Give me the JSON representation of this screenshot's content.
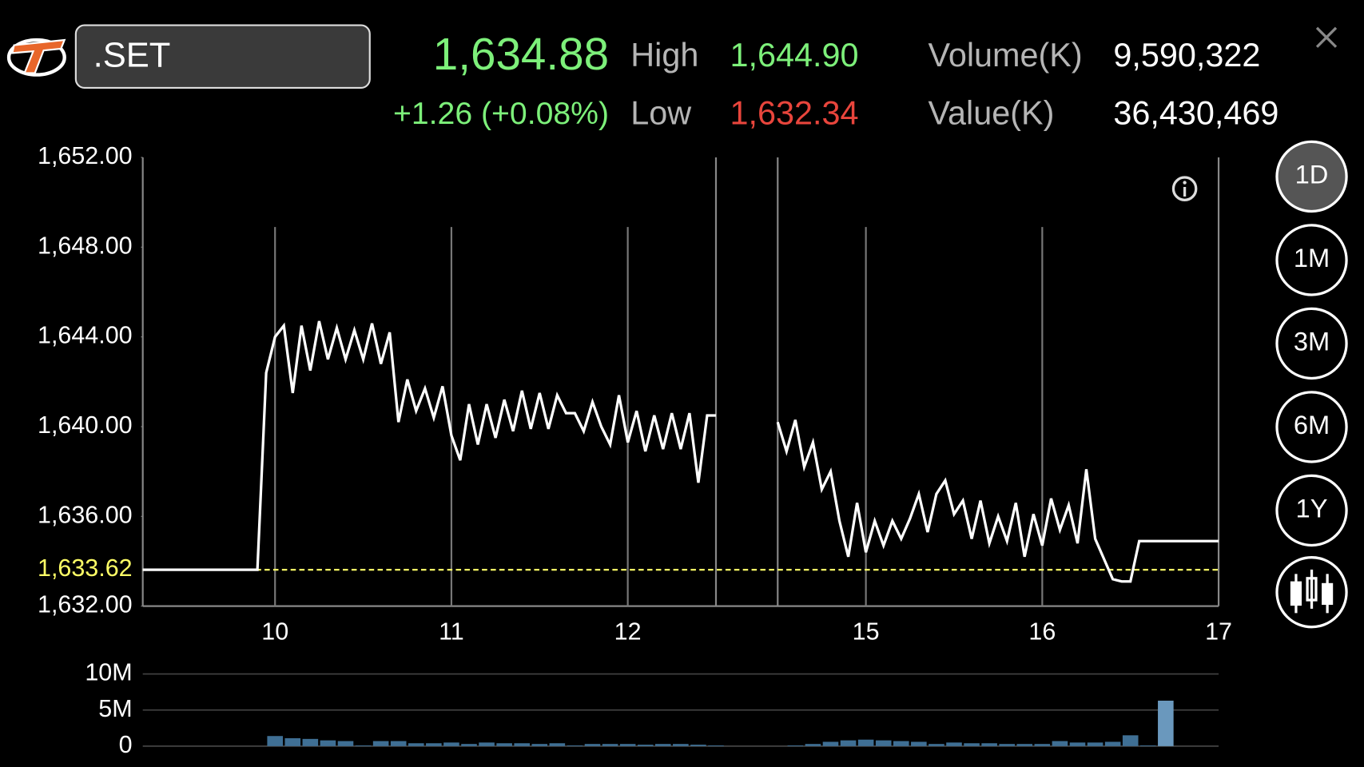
{
  "header": {
    "symbol": ".SET",
    "last": "1,634.88",
    "change": "+1.26 (+0.08%)",
    "high_label": "High",
    "high": "1,644.90",
    "low_label": "Low",
    "low": "1,632.34",
    "volume_label": "Volume(K)",
    "volume": "9,590,322",
    "value_label": "Value(K)",
    "value": "36,430,469"
  },
  "periods": {
    "items": [
      "1D",
      "1M",
      "3M",
      "6M",
      "1Y"
    ],
    "selected": "1D"
  },
  "chart_data": [
    {
      "type": "line",
      "color": "#ffffff",
      "x": [
        9.25,
        9.9,
        9.95,
        10.0,
        10.05,
        10.1,
        10.15,
        10.2,
        10.25,
        10.3,
        10.35,
        10.4,
        10.45,
        10.5,
        10.55,
        10.6,
        10.65,
        10.7,
        10.75,
        10.8,
        10.85,
        10.9,
        10.95,
        11.0,
        11.05,
        11.1,
        11.15,
        11.2,
        11.25,
        11.3,
        11.35,
        11.4,
        11.45,
        11.5,
        11.55,
        11.6,
        11.65,
        11.7,
        11.75,
        11.8,
        11.85,
        11.9,
        11.95,
        12.0,
        12.05,
        12.1,
        12.15,
        12.2,
        12.25,
        12.3,
        12.35,
        12.4,
        12.45,
        12.5,
        13.5,
        14.5,
        14.55,
        14.6,
        14.65,
        14.7,
        14.75,
        14.8,
        14.85,
        14.9,
        14.95,
        15.0,
        15.05,
        15.1,
        15.15,
        15.2,
        15.25,
        15.3,
        15.35,
        15.4,
        15.45,
        15.5,
        15.55,
        15.6,
        15.65,
        15.7,
        15.75,
        15.8,
        15.85,
        15.9,
        15.95,
        16.0,
        16.05,
        16.1,
        16.15,
        16.2,
        16.25,
        16.3,
        16.35,
        16.4,
        16.45,
        16.5,
        16.55,
        17.0
      ],
      "values": [
        1633.62,
        1633.62,
        1642.4,
        1644.0,
        1644.5,
        1641.5,
        1644.5,
        1642.5,
        1644.7,
        1643.0,
        1644.4,
        1643.0,
        1644.3,
        1643.0,
        1644.6,
        1642.8,
        1644.2,
        1640.2,
        1642.1,
        1640.7,
        1641.7,
        1640.4,
        1641.8,
        1639.6,
        1638.5,
        1641.0,
        1639.2,
        1641.0,
        1639.5,
        1641.2,
        1639.8,
        1641.6,
        1639.9,
        1641.5,
        1639.9,
        1641.4,
        1640.6,
        1640.6,
        1639.8,
        1641.1,
        1640.0,
        1639.2,
        1641.4,
        1639.3,
        1640.7,
        1638.9,
        1640.5,
        1639.0,
        1640.6,
        1639.0,
        1640.6,
        1637.5,
        1640.5,
        1640.5,
        null,
        1640.2,
        1638.9,
        1640.3,
        1638.2,
        1639.3,
        1637.2,
        1638.0,
        1635.8,
        1634.2,
        1636.6,
        1634.4,
        1635.8,
        1634.7,
        1635.8,
        1635.0,
        1635.9,
        1637.0,
        1635.3,
        1637.0,
        1637.6,
        1636.1,
        1636.7,
        1635.0,
        1636.7,
        1634.8,
        1636.0,
        1634.9,
        1636.6,
        1634.2,
        1636.1,
        1634.7,
        1636.8,
        1635.4,
        1636.5,
        1634.8,
        1638.1,
        1635.0,
        1634.1,
        1633.2,
        1633.1,
        1633.1,
        1634.9,
        1634.9
      ],
      "xlim": [
        9.25,
        17
      ],
      "axis_break": [
        12.5,
        14.5
      ],
      "xticks": [
        10,
        11,
        12,
        15,
        16,
        17
      ],
      "ylim": [
        1632,
        1652
      ],
      "yticks": [
        {
          "value": 1632,
          "label": "1,632.00"
        },
        {
          "value": 1636,
          "label": "1,636.00"
        },
        {
          "value": 1640,
          "label": "1,640.00"
        },
        {
          "value": 1644,
          "label": "1,644.00"
        },
        {
          "value": 1648,
          "label": "1,648.00"
        },
        {
          "value": 1652,
          "label": "1,652.00"
        }
      ],
      "reference": {
        "value": 1633.62,
        "label": "1,633.62",
        "color": "#ffff66"
      }
    },
    {
      "type": "bar",
      "color": "#3f6f94",
      "highlight_color": "#6a98bd",
      "x": [
        10.0,
        10.1,
        10.2,
        10.3,
        10.4,
        10.5,
        10.6,
        10.7,
        10.8,
        10.9,
        11.0,
        11.1,
        11.2,
        11.3,
        11.4,
        11.5,
        11.6,
        11.7,
        11.8,
        11.9,
        12.0,
        12.1,
        12.2,
        12.3,
        12.4,
        12.5,
        14.6,
        14.7,
        14.8,
        14.9,
        15.0,
        15.1,
        15.2,
        15.3,
        15.4,
        15.5,
        15.6,
        15.7,
        15.8,
        15.9,
        16.0,
        16.1,
        16.2,
        16.3,
        16.4,
        16.5,
        16.6,
        16.7
      ],
      "values": [
        1400000,
        1100000,
        1000000,
        800000,
        700000,
        100000,
        700000,
        700000,
        400000,
        400000,
        500000,
        300000,
        500000,
        400000,
        400000,
        300000,
        400000,
        100000,
        300000,
        300000,
        300000,
        200000,
        300000,
        300000,
        200000,
        100000,
        100000,
        300000,
        600000,
        800000,
        900000,
        800000,
        700000,
        600000,
        300000,
        500000,
        400000,
        400000,
        300000,
        300000,
        300000,
        700000,
        500000,
        500000,
        600000,
        1500000,
        100000,
        6300000
      ],
      "xlim": [
        9.25,
        17
      ],
      "axis_break": [
        12.5,
        14.5
      ],
      "ylim": [
        0,
        10000000
      ],
      "yticks": [
        0,
        {
          "value": 5000000,
          "label": "5M"
        },
        {
          "value": 10000000,
          "label": "10M"
        }
      ]
    }
  ]
}
